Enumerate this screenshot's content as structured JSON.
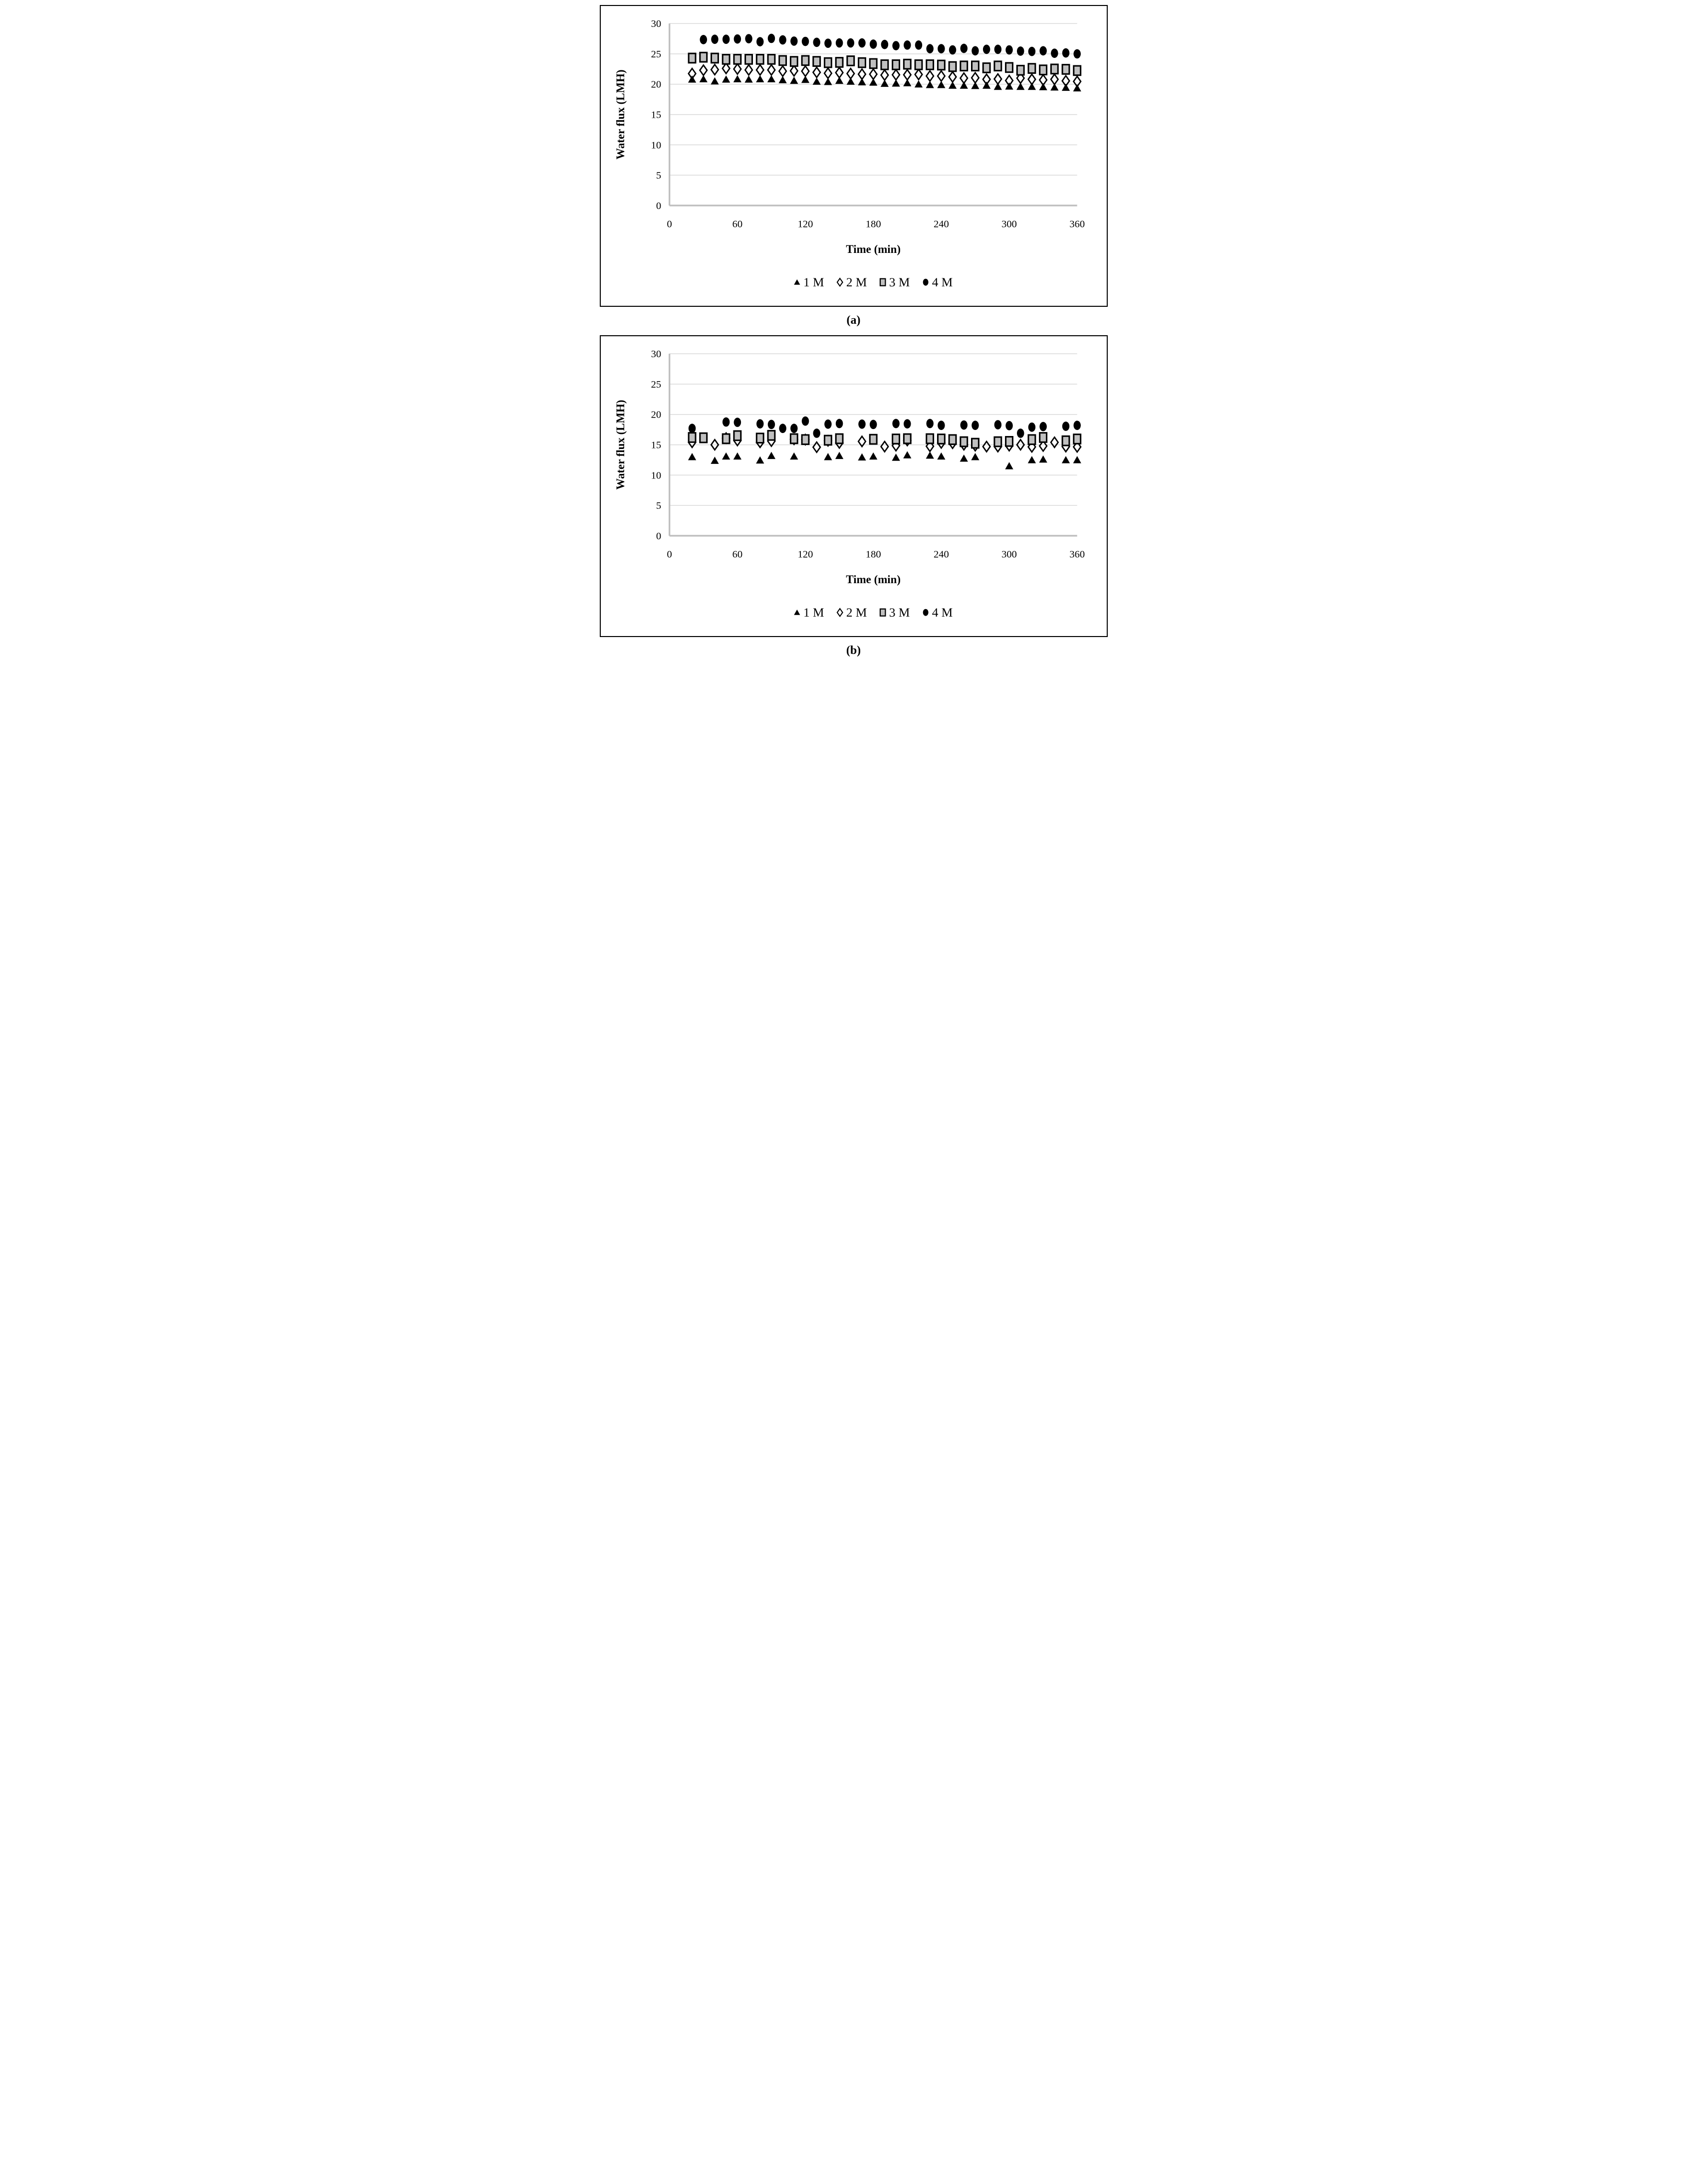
{
  "figure": {
    "background": "#ffffff",
    "grid_color": "#d9d9d9",
    "axis_color": "#bfbfbf",
    "text_color": "#000000",
    "marker_gray_fill": "#c0c0c0",
    "legend": [
      {
        "label": "1 M",
        "marker": "triangle"
      },
      {
        "label": "2 M",
        "marker": "diamond"
      },
      {
        "label": "3 M",
        "marker": "square"
      },
      {
        "label": "4 M",
        "marker": "circle"
      }
    ]
  },
  "chart_data": [
    {
      "id": "a",
      "type": "scatter",
      "caption": "(a)",
      "xlabel": "Time (min)",
      "ylabel": "Water flux (LMH)",
      "xlim": [
        0,
        390
      ],
      "ylim": [
        0,
        30
      ],
      "xticks": [
        0,
        60,
        120,
        180,
        240,
        300,
        360
      ],
      "yticks": [
        30,
        25,
        20,
        15,
        10,
        5,
        0
      ],
      "grid": "horizontal",
      "legend_position": "bottom",
      "series": [
        {
          "name": "1 M",
          "marker": "triangle",
          "points": [
            [
              20,
              20.8
            ],
            [
              30,
              20.85
            ],
            [
              40,
              20.5
            ],
            [
              50,
              20.8
            ],
            [
              60,
              20.85
            ],
            [
              70,
              20.8
            ],
            [
              80,
              20.85
            ],
            [
              90,
              20.85
            ],
            [
              100,
              20.7
            ],
            [
              110,
              20.6
            ],
            [
              120,
              20.75
            ],
            [
              130,
              20.45
            ],
            [
              140,
              20.4
            ],
            [
              150,
              20.6
            ],
            [
              160,
              20.45
            ],
            [
              170,
              20.35
            ],
            [
              180,
              20.3
            ],
            [
              190,
              20.1
            ],
            [
              200,
              20.15
            ],
            [
              210,
              20.2
            ],
            [
              220,
              20.0
            ],
            [
              230,
              19.9
            ],
            [
              240,
              19.9
            ],
            [
              250,
              19.8
            ],
            [
              260,
              19.8
            ],
            [
              270,
              19.75
            ],
            [
              280,
              19.8
            ],
            [
              290,
              19.6
            ],
            [
              300,
              19.65
            ],
            [
              310,
              19.6
            ],
            [
              320,
              19.6
            ],
            [
              330,
              19.55
            ],
            [
              340,
              19.5
            ],
            [
              350,
              19.45
            ],
            [
              360,
              19.35
            ]
          ]
        },
        {
          "name": "2 M",
          "marker": "diamond",
          "points": [
            [
              20,
              21.75
            ],
            [
              30,
              22.3
            ],
            [
              40,
              22.4
            ],
            [
              50,
              22.6
            ],
            [
              60,
              22.5
            ],
            [
              70,
              22.35
            ],
            [
              80,
              22.35
            ],
            [
              90,
              22.35
            ],
            [
              100,
              22.15
            ],
            [
              110,
              22.2
            ],
            [
              120,
              22.15
            ],
            [
              130,
              21.95
            ],
            [
              140,
              21.8
            ],
            [
              150,
              21.9
            ],
            [
              160,
              21.75
            ],
            [
              170,
              21.65
            ],
            [
              180,
              21.65
            ],
            [
              190,
              21.5
            ],
            [
              200,
              21.55
            ],
            [
              210,
              21.55
            ],
            [
              220,
              21.6
            ],
            [
              230,
              21.35
            ],
            [
              240,
              21.35
            ],
            [
              250,
              21.2
            ],
            [
              260,
              21.0
            ],
            [
              270,
              21.05
            ],
            [
              280,
              20.8
            ],
            [
              290,
              20.85
            ],
            [
              300,
              20.6
            ],
            [
              310,
              21.0
            ],
            [
              320,
              20.8
            ],
            [
              330,
              20.7
            ],
            [
              340,
              20.8
            ],
            [
              350,
              20.55
            ],
            [
              360,
              20.45
            ]
          ]
        },
        {
          "name": "3 M",
          "marker": "square",
          "points": [
            [
              20,
              24.3
            ],
            [
              30,
              24.45
            ],
            [
              40,
              24.3
            ],
            [
              50,
              24.1
            ],
            [
              60,
              24.1
            ],
            [
              70,
              24.1
            ],
            [
              80,
              24.1
            ],
            [
              90,
              24.1
            ],
            [
              100,
              23.9
            ],
            [
              110,
              23.75
            ],
            [
              120,
              23.9
            ],
            [
              130,
              23.75
            ],
            [
              140,
              23.55
            ],
            [
              150,
              23.6
            ],
            [
              160,
              23.85
            ],
            [
              170,
              23.55
            ],
            [
              180,
              23.4
            ],
            [
              190,
              23.2
            ],
            [
              200,
              23.2
            ],
            [
              210,
              23.3
            ],
            [
              220,
              23.2
            ],
            [
              230,
              23.2
            ],
            [
              240,
              23.15
            ],
            [
              250,
              22.9
            ],
            [
              260,
              23.0
            ],
            [
              270,
              23.0
            ],
            [
              280,
              22.7
            ],
            [
              290,
              23.0
            ],
            [
              300,
              22.75
            ],
            [
              310,
              22.3
            ],
            [
              320,
              22.6
            ],
            [
              330,
              22.35
            ],
            [
              340,
              22.5
            ],
            [
              350,
              22.45
            ],
            [
              360,
              22.25
            ]
          ]
        },
        {
          "name": "4 M",
          "marker": "circle",
          "points": [
            [
              30,
              27.35
            ],
            [
              40,
              27.4
            ],
            [
              50,
              27.4
            ],
            [
              60,
              27.45
            ],
            [
              70,
              27.5
            ],
            [
              80,
              27.0
            ],
            [
              90,
              27.55
            ],
            [
              100,
              27.3
            ],
            [
              110,
              27.1
            ],
            [
              120,
              27.05
            ],
            [
              130,
              26.9
            ],
            [
              140,
              26.75
            ],
            [
              150,
              26.8
            ],
            [
              160,
              26.8
            ],
            [
              170,
              26.8
            ],
            [
              180,
              26.6
            ],
            [
              190,
              26.55
            ],
            [
              200,
              26.35
            ],
            [
              210,
              26.45
            ],
            [
              220,
              26.45
            ],
            [
              230,
              25.85
            ],
            [
              240,
              25.85
            ],
            [
              250,
              25.65
            ],
            [
              260,
              25.9
            ],
            [
              270,
              25.5
            ],
            [
              280,
              25.75
            ],
            [
              290,
              25.75
            ],
            [
              300,
              25.65
            ],
            [
              310,
              25.45
            ],
            [
              320,
              25.4
            ],
            [
              330,
              25.5
            ],
            [
              340,
              25.1
            ],
            [
              350,
              25.15
            ],
            [
              360,
              25.0
            ]
          ]
        }
      ]
    },
    {
      "id": "b",
      "type": "scatter",
      "caption": "(b)",
      "xlabel": "Time (min)",
      "ylabel": "Water flux (LMH)",
      "xlim": [
        0,
        390
      ],
      "ylim": [
        0,
        30
      ],
      "xticks": [
        0,
        60,
        120,
        180,
        240,
        300,
        360
      ],
      "yticks": [
        30,
        25,
        20,
        15,
        10,
        5,
        0
      ],
      "grid": "horizontal",
      "legend_position": "bottom",
      "series": [
        {
          "name": "1 M",
          "marker": "triangle",
          "points": [
            [
              20,
              13.0
            ],
            [
              40,
              12.4
            ],
            [
              50,
              13.1
            ],
            [
              60,
              13.1
            ],
            [
              80,
              12.45
            ],
            [
              90,
              13.2
            ],
            [
              110,
              13.1
            ],
            [
              140,
              13.0
            ],
            [
              150,
              13.2
            ],
            [
              170,
              12.95
            ],
            [
              180,
              13.1
            ],
            [
              200,
              12.9
            ],
            [
              210,
              13.3
            ],
            [
              230,
              13.25
            ],
            [
              240,
              13.1
            ],
            [
              260,
              12.75
            ],
            [
              270,
              13.0
            ],
            [
              300,
              11.5
            ],
            [
              320,
              12.5
            ],
            [
              330,
              12.6
            ],
            [
              350,
              12.5
            ],
            [
              360,
              12.5
            ]
          ]
        },
        {
          "name": "2 M",
          "marker": "diamond",
          "points": [
            [
              20,
              15.4
            ],
            [
              40,
              15.0
            ],
            [
              50,
              16.1
            ],
            [
              60,
              15.7
            ],
            [
              80,
              15.4
            ],
            [
              90,
              15.6
            ],
            [
              110,
              15.9
            ],
            [
              120,
              15.85
            ],
            [
              130,
              14.6
            ],
            [
              140,
              15.65
            ],
            [
              150,
              15.3
            ],
            [
              170,
              15.55
            ],
            [
              190,
              14.7
            ],
            [
              200,
              14.85
            ],
            [
              210,
              15.7
            ],
            [
              230,
              14.75
            ],
            [
              240,
              15.3
            ],
            [
              250,
              15.25
            ],
            [
              260,
              15.0
            ],
            [
              270,
              14.85
            ],
            [
              280,
              14.7
            ],
            [
              290,
              14.7
            ],
            [
              300,
              14.85
            ],
            [
              310,
              15.0
            ],
            [
              320,
              14.65
            ],
            [
              330,
              14.8
            ],
            [
              340,
              15.4
            ],
            [
              350,
              14.7
            ],
            [
              360,
              14.65
            ]
          ]
        },
        {
          "name": "3 M",
          "marker": "square",
          "points": [
            [
              20,
              16.2
            ],
            [
              30,
              16.15
            ],
            [
              50,
              16.0
            ],
            [
              60,
              16.5
            ],
            [
              80,
              16.1
            ],
            [
              90,
              16.55
            ],
            [
              110,
              16.0
            ],
            [
              120,
              15.85
            ],
            [
              140,
              15.75
            ],
            [
              150,
              16.0
            ],
            [
              180,
              15.9
            ],
            [
              200,
              15.95
            ],
            [
              210,
              16.0
            ],
            [
              230,
              16.0
            ],
            [
              240,
              15.95
            ],
            [
              250,
              15.85
            ],
            [
              260,
              15.5
            ],
            [
              270,
              15.25
            ],
            [
              290,
              15.5
            ],
            [
              300,
              15.55
            ],
            [
              320,
              15.85
            ],
            [
              330,
              16.2
            ],
            [
              350,
              15.65
            ],
            [
              360,
              15.95
            ]
          ]
        },
        {
          "name": "4 M",
          "marker": "circle",
          "points": [
            [
              20,
              17.7
            ],
            [
              50,
              18.75
            ],
            [
              60,
              18.7
            ],
            [
              80,
              18.45
            ],
            [
              90,
              18.35
            ],
            [
              100,
              17.7
            ],
            [
              110,
              17.7
            ],
            [
              120,
              18.9
            ],
            [
              130,
              16.9
            ],
            [
              140,
              18.4
            ],
            [
              150,
              18.5
            ],
            [
              170,
              18.4
            ],
            [
              180,
              18.35
            ],
            [
              200,
              18.5
            ],
            [
              210,
              18.45
            ],
            [
              230,
              18.5
            ],
            [
              240,
              18.2
            ],
            [
              260,
              18.25
            ],
            [
              270,
              18.2
            ],
            [
              290,
              18.3
            ],
            [
              300,
              18.15
            ],
            [
              310,
              16.9
            ],
            [
              320,
              17.9
            ],
            [
              330,
              18.0
            ],
            [
              350,
              18.05
            ],
            [
              360,
              18.2
            ]
          ]
        }
      ]
    }
  ]
}
